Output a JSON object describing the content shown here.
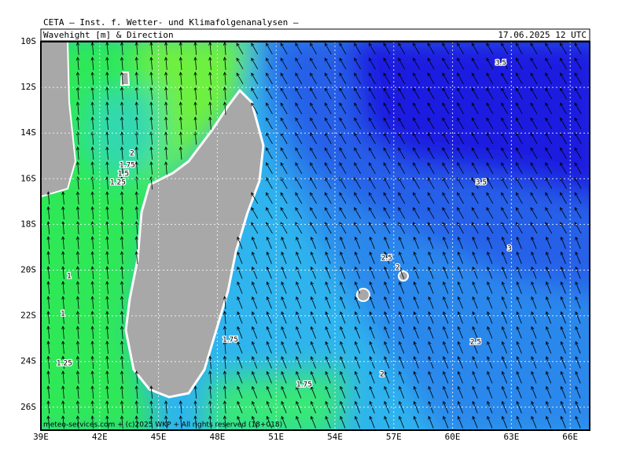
{
  "header": {
    "title": "CETA – Inst. f. Wetter- und Klimafolgenanalysen –",
    "subtitle": "Wavehight [m] & Direction",
    "date": "17.06.2025 12 UTC"
  },
  "map": {
    "lat_labels": [
      "10S",
      "12S",
      "14S",
      "16S",
      "18S",
      "20S",
      "22S",
      "24S",
      "26S"
    ],
    "lon_labels": [
      "39E",
      "42E",
      "45E",
      "48E",
      "51E",
      "54E",
      "57E",
      "60E",
      "63E",
      "66E"
    ],
    "contour_labels": [
      "3.5",
      "2",
      "1.75",
      "1.5",
      "1.25",
      "3.5",
      "2.5",
      "2",
      "3",
      "1",
      "1",
      "1.75",
      "2.5",
      "1.25",
      "2",
      "1.75"
    ],
    "copyright": "meteo-services.com + (c)2025 WKP + All rights reserved (18+018)"
  }
}
